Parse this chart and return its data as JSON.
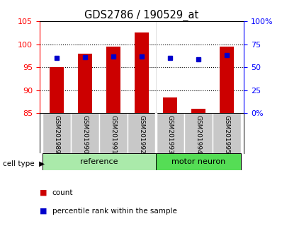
{
  "title": "GDS2786 / 190529_at",
  "samples": [
    "GSM201989",
    "GSM201990",
    "GSM201991",
    "GSM201992",
    "GSM201993",
    "GSM201994",
    "GSM201995"
  ],
  "red_values": [
    95.0,
    98.0,
    99.5,
    102.5,
    88.5,
    86.0,
    99.5
  ],
  "blue_pct": [
    60,
    61,
    62,
    62,
    60,
    59,
    63
  ],
  "ylim_left": [
    85,
    105
  ],
  "ylim_right": [
    0,
    100
  ],
  "yticks_left": [
    85,
    90,
    95,
    100,
    105
  ],
  "yticks_right": [
    0,
    25,
    50,
    75,
    100
  ],
  "ytick_labels_right": [
    "0%",
    "25",
    "50",
    "75",
    "100%"
  ],
  "groups": [
    {
      "label": "reference",
      "count": 4,
      "color": "#aaeaaa"
    },
    {
      "label": "motor neuron",
      "count": 3,
      "color": "#55dd55"
    }
  ],
  "bar_color": "#CC0000",
  "dot_color": "#0000CC",
  "bg_color": "#ffffff",
  "tick_bg": "#C8C8C8",
  "bar_width": 0.5,
  "bar_bottom": 85,
  "ref_count": 4,
  "gridlines": [
    90,
    95,
    100
  ],
  "legend": [
    {
      "color": "#CC0000",
      "label": "count"
    },
    {
      "color": "#0000CC",
      "label": "percentile rank within the sample"
    }
  ],
  "cell_type_label": "cell type  ▶"
}
